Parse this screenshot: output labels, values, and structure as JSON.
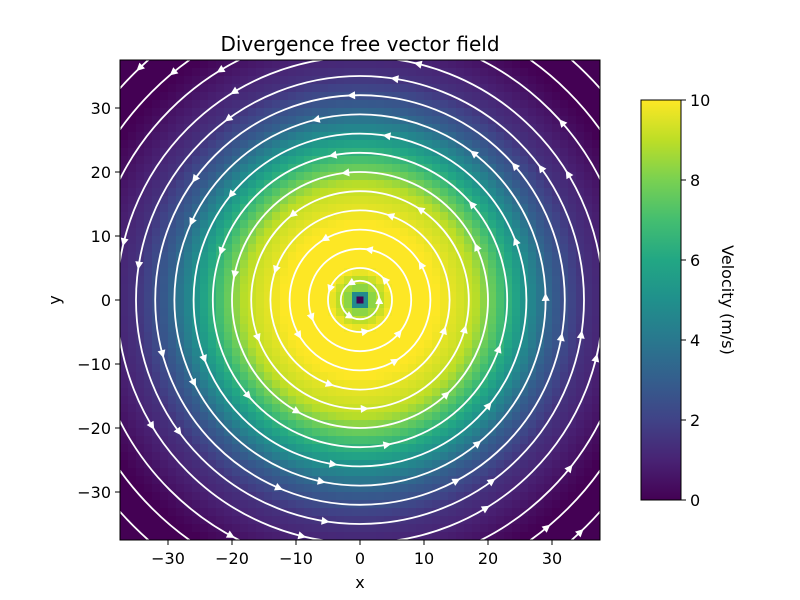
{
  "chart_data": {
    "type": "heatmap",
    "subtype": "streamplot",
    "title": "Divergence free vector field",
    "xlabel": "x",
    "ylabel": "y",
    "xlim": [
      -37.5,
      37.5
    ],
    "ylim": [
      -37.5,
      37.5
    ],
    "xticks": [
      -30,
      -20,
      -10,
      0,
      10,
      20,
      30
    ],
    "yticks": [
      -30,
      -20,
      -10,
      0,
      10,
      20,
      30
    ],
    "xtick_labels": [
      "−30",
      "−20",
      "−10",
      "0",
      "10",
      "20",
      "30"
    ],
    "ytick_labels": [
      "−30",
      "−20",
      "−10",
      "0",
      "10",
      "20",
      "30"
    ],
    "field": {
      "description": "rotating vortex centered at origin, counter-clockwise flow",
      "center": [
        0,
        0
      ],
      "rotation": "counter-clockwise",
      "speed_profile": [
        {
          "r": 0,
          "speed": 0
        },
        {
          "r": 1.5,
          "speed": 8
        },
        {
          "r": 5,
          "speed": 10
        },
        {
          "r": 12,
          "speed": 10
        },
        {
          "r": 18,
          "speed": 9
        },
        {
          "r": 22,
          "speed": 7
        },
        {
          "r": 26,
          "speed": 5
        },
        {
          "r": 30,
          "speed": 3
        },
        {
          "r": 35,
          "speed": 1.5
        },
        {
          "r": 45,
          "speed": 0
        }
      ],
      "streamline_color": "#ffffff",
      "streamline_radii": [
        3,
        5,
        8,
        11,
        14,
        17,
        20,
        23,
        26,
        29,
        32,
        35,
        38,
        42,
        46,
        50
      ]
    },
    "grid": false,
    "colormap": "viridis",
    "colorbar": {
      "label": "Velocity (m/s)",
      "range": [
        0,
        10
      ],
      "ticks": [
        0,
        2,
        4,
        6,
        8,
        10
      ],
      "tick_labels": [
        "0",
        "2",
        "4",
        "6",
        "8",
        "10"
      ]
    }
  }
}
